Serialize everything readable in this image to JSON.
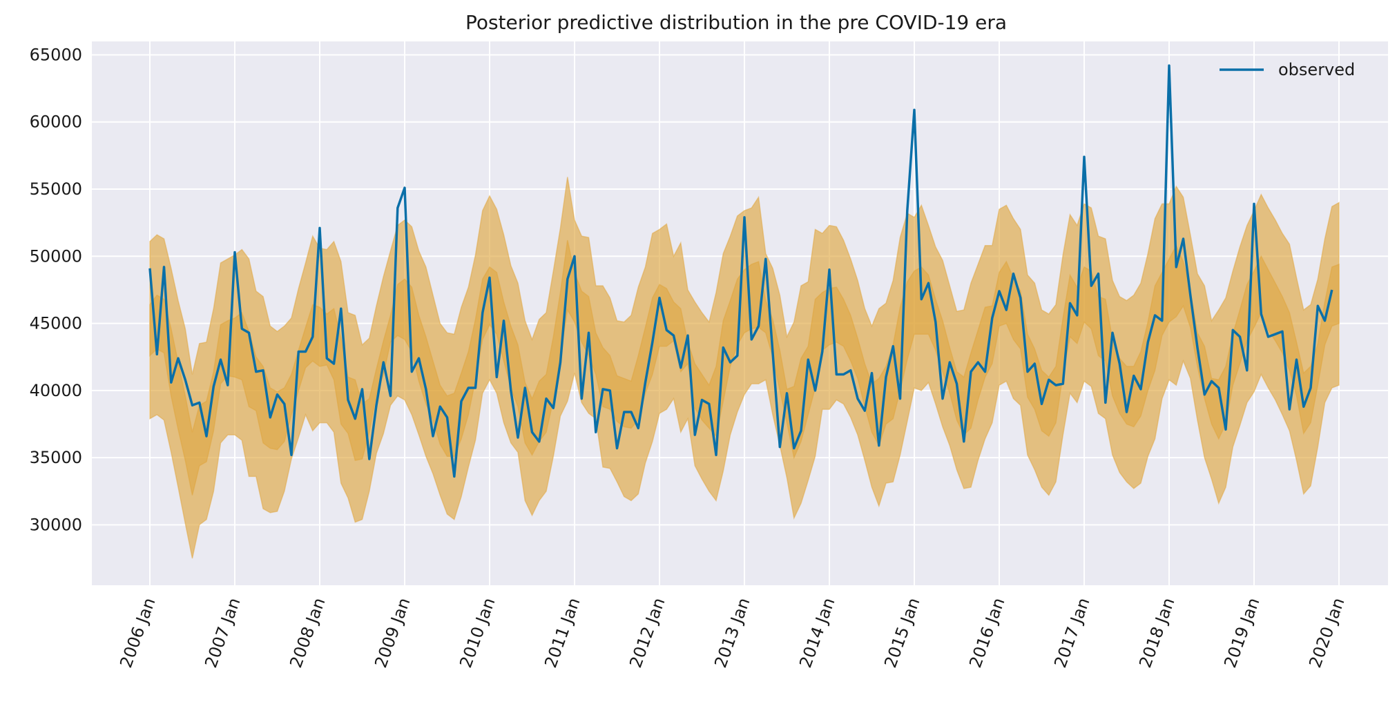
{
  "chart_data": {
    "type": "line",
    "title": "Posterior predictive distribution in the pre COVID-19 era",
    "xlabel": "",
    "ylabel": "",
    "ylim": [
      25500,
      66000
    ],
    "y_ticks": [
      30000,
      35000,
      40000,
      45000,
      50000,
      55000,
      60000,
      65000
    ],
    "x_ticks": [
      "2006 Jan",
      "2007 Jan",
      "2008 Jan",
      "2009 Jan",
      "2010 Jan",
      "2011 Jan",
      "2012 Jan",
      "2013 Jan",
      "2014 Jan",
      "2015 Jan",
      "2016 Jan",
      "2017 Jan",
      "2018 Jan",
      "2019 Jan",
      "2020 Jan"
    ],
    "grid": true,
    "legend": {
      "position": "top-right",
      "entries": [
        "observed"
      ]
    },
    "colors": {
      "observed": "#0a6fa8",
      "band": "#dfa43a",
      "background": "#eaeaf2",
      "grid": "#ffffff"
    },
    "series": [
      {
        "name": "observed",
        "x_start": "2006 Jan",
        "frequency": "monthly",
        "values": [
          49100,
          42700,
          49200,
          40600,
          42400,
          40800,
          38900,
          39100,
          36600,
          40300,
          42300,
          40400,
          50300,
          44600,
          44300,
          41400,
          41500,
          38000,
          39700,
          39000,
          35200,
          42900,
          42900,
          44000,
          52100,
          42400,
          42000,
          46100,
          39300,
          37900,
          40100,
          34900,
          38900,
          42100,
          39600,
          53600,
          55100,
          41400,
          42400,
          40100,
          36600,
          38800,
          38000,
          33600,
          39200,
          40200,
          40200,
          45800,
          48400,
          41000,
          45200,
          40000,
          36500,
          40200,
          36900,
          36200,
          39400,
          38700,
          42100,
          48300,
          50000,
          39400,
          44300,
          36900,
          40100,
          40000,
          35700,
          38400,
          38400,
          37200,
          40600,
          43600,
          46900,
          44500,
          44100,
          41700,
          44100,
          36700,
          39300,
          39000,
          35200,
          43200,
          42100,
          42600,
          52900,
          43800,
          44800,
          49800,
          42800,
          35800,
          39800,
          35700,
          37000,
          42300,
          40000,
          42900,
          49000,
          41200,
          41200,
          41500,
          39400,
          38500,
          41300,
          35900,
          41000,
          43300,
          39400,
          53400,
          60900,
          46800,
          48000,
          45100,
          39400,
          42100,
          40500,
          36200,
          41400,
          42100,
          41400,
          45400,
          47400,
          46000,
          48700,
          46900,
          41400,
          42000,
          39000,
          40800,
          40400,
          40500,
          46500,
          45600,
          57400,
          47800,
          48700,
          39100,
          44300,
          42000,
          38400,
          41100,
          40100,
          43600,
          45600,
          45200,
          64200,
          49200,
          51300,
          47100,
          43200,
          39700,
          40700,
          40200,
          37100,
          44500,
          44000,
          41500,
          53900,
          45700,
          44000,
          44200,
          44400,
          38600,
          42300,
          38800,
          40200,
          46300,
          45200,
          47500
        ]
      }
    ],
    "bands": [
      {
        "name": "outer interval",
        "lower": [
          37900,
          38200,
          37800,
          35400,
          32800,
          30100,
          27500,
          30000,
          30400,
          32500,
          36100,
          36700,
          36700,
          36300,
          33600,
          33600,
          31200,
          30900,
          31000,
          32500,
          34900,
          36500,
          38200,
          37000,
          37600,
          37600,
          36900,
          33100,
          32000,
          30200,
          30400,
          32500,
          35300,
          36800,
          38900,
          39600,
          39300,
          38200,
          36700,
          35100,
          33800,
          32200,
          30800,
          30400,
          32100,
          34300,
          36300,
          39800,
          40800,
          39800,
          37600,
          36100,
          35400,
          31800,
          30700,
          31800,
          32500,
          35100,
          38100,
          39200,
          41300,
          39100,
          38300,
          37900,
          34300,
          34200,
          33200,
          32100,
          31800,
          32300,
          34600,
          36200,
          38300,
          38600,
          39400,
          36900,
          37900,
          34400,
          33400,
          32500,
          31800,
          34000,
          36700,
          38400,
          39700,
          40500,
          40500,
          40800,
          38200,
          35900,
          33500,
          30500,
          31600,
          33300,
          35100,
          38600,
          38600,
          39300,
          39000,
          38000,
          36700,
          34800,
          32800,
          31400,
          33100,
          33200,
          35200,
          37700,
          40200,
          40000,
          40600,
          39000,
          37300,
          35900,
          34100,
          32700,
          32800,
          34800,
          36400,
          37600,
          40400,
          40700,
          39400,
          38900,
          35200,
          34100,
          32800,
          32200,
          33200,
          36700,
          39800,
          39100,
          40700,
          40300,
          38300,
          37900,
          35200,
          33900,
          33200,
          32700,
          33100,
          35100,
          36400,
          39400,
          40800,
          40400,
          42200,
          40900,
          37800,
          35000,
          33400,
          31600,
          32800,
          35800,
          37400,
          39100,
          39900,
          41200,
          40200,
          39300,
          38200,
          37000,
          34800,
          32300,
          32900,
          35800,
          39100,
          40200,
          40400
        ],
        "upper": [
          51100,
          51600,
          51300,
          49100,
          46700,
          44600,
          41200,
          43500,
          43600,
          46100,
          49500,
          49800,
          50100,
          50500,
          49800,
          47400,
          47000,
          44800,
          44400,
          44800,
          45400,
          47600,
          49500,
          51500,
          50600,
          50500,
          51100,
          49600,
          45800,
          45600,
          43400,
          43900,
          46300,
          48500,
          50400,
          52300,
          52700,
          52200,
          50400,
          49200,
          47100,
          45000,
          44300,
          44200,
          46200,
          47700,
          50100,
          53400,
          54500,
          53500,
          51600,
          49300,
          48000,
          45200,
          43800,
          45300,
          45800,
          48900,
          52100,
          55900,
          52700,
          51500,
          51400,
          47800,
          47800,
          46900,
          45200,
          45100,
          45600,
          47700,
          49200,
          51700,
          52000,
          52400,
          50000,
          51000,
          47500,
          46600,
          45800,
          45100,
          47300,
          50200,
          51500,
          53000,
          53400,
          53600,
          54400,
          50200,
          49100,
          47100,
          44000,
          45100,
          47800,
          48100,
          52000,
          51700,
          52300,
          52200,
          51200,
          49800,
          48200,
          46100,
          44800,
          46100,
          46500,
          48200,
          51400,
          53200,
          52900,
          53800,
          52300,
          50700,
          49700,
          47800,
          45900,
          46000,
          48000,
          49400,
          50800,
          50800,
          53500,
          53800,
          52800,
          52000,
          48600,
          48000,
          46000,
          45700,
          46400,
          50100,
          53100,
          52300,
          53900,
          53600,
          51500,
          51300,
          48200,
          47000,
          46700,
          47100,
          48000,
          50200,
          52800,
          53900,
          53900,
          55200,
          54400,
          51600,
          48700,
          47800,
          45200,
          46000,
          46900,
          48900,
          50700,
          52300,
          53400,
          54600,
          53600,
          52700,
          51700,
          50900,
          48400,
          46000,
          46400,
          48300,
          51300,
          53700,
          54000
        ]
      },
      {
        "name": "inner interval",
        "lower": [
          42600,
          43100,
          42800,
          39600,
          37100,
          34800,
          32200,
          34400,
          34700,
          37000,
          40500,
          41100,
          41000,
          40800,
          38800,
          38500,
          36100,
          35700,
          35600,
          36200,
          38200,
          40000,
          41700,
          42200,
          41800,
          41900,
          40800,
          37500,
          36800,
          34800,
          34900,
          36900,
          39700,
          41200,
          43600,
          44100,
          43800,
          42900,
          40700,
          39000,
          37800,
          36000,
          35100,
          35100,
          36400,
          38200,
          40800,
          43800,
          44900,
          44200,
          42200,
          40200,
          38800,
          36100,
          35200,
          36200,
          36900,
          39300,
          42600,
          46000,
          45100,
          43600,
          42600,
          41200,
          38800,
          38600,
          37700,
          37300,
          37200,
          37800,
          39800,
          41200,
          43300,
          43300,
          43700,
          41400,
          42000,
          38700,
          37800,
          37200,
          36600,
          39200,
          41800,
          43400,
          44300,
          44600,
          44700,
          44300,
          42500,
          40000,
          37600,
          35000,
          36200,
          38200,
          40200,
          43000,
          43400,
          43600,
          43300,
          42200,
          40900,
          38800,
          36900,
          35900,
          37500,
          37900,
          40000,
          42300,
          44200,
          44200,
          44200,
          43000,
          41400,
          39800,
          37800,
          36700,
          37200,
          39300,
          41000,
          42000,
          44800,
          45000,
          43800,
          43100,
          39500,
          38600,
          37000,
          36600,
          37600,
          41200,
          44000,
          43500,
          45100,
          44600,
          42600,
          42200,
          39600,
          38300,
          37500,
          37300,
          38100,
          40000,
          41500,
          44100,
          45100,
          45500,
          46300,
          44700,
          41800,
          39400,
          37500,
          36400,
          37500,
          40400,
          42000,
          43700,
          44700,
          45800,
          44500,
          43700,
          42800,
          41500,
          39600,
          36800,
          37600,
          40400,
          43400,
          44800,
          45000
        ],
        "upper": [
          46400,
          47100,
          46800,
          44600,
          42100,
          39600,
          36900,
          38900,
          39200,
          41400,
          44900,
          45200,
          45400,
          45800,
          44400,
          42500,
          41800,
          40200,
          39900,
          40200,
          41200,
          43000,
          44700,
          46400,
          46200,
          45700,
          46100,
          43900,
          41000,
          40800,
          39000,
          39400,
          41600,
          43700,
          45600,
          47900,
          48300,
          47700,
          45600,
          44000,
          42200,
          40400,
          39600,
          39800,
          41300,
          42900,
          45300,
          48300,
          49200,
          48800,
          46600,
          44800,
          43400,
          40600,
          39400,
          40700,
          41200,
          44000,
          47300,
          51200,
          48800,
          47400,
          47000,
          44300,
          43200,
          42600,
          41100,
          40900,
          40700,
          42600,
          44700,
          46900,
          47900,
          47600,
          46600,
          46100,
          43600,
          42000,
          41200,
          40400,
          41800,
          45200,
          46700,
          48300,
          49000,
          49400,
          49600,
          46700,
          45300,
          43000,
          40100,
          40300,
          42400,
          43300,
          46800,
          47300,
          47600,
          47700,
          46800,
          45600,
          43900,
          42000,
          40500,
          40900,
          41800,
          43400,
          46200,
          48100,
          48900,
          49200,
          48600,
          46800,
          45200,
          43200,
          41400,
          41000,
          42800,
          44500,
          46200,
          46300,
          48800,
          49600,
          48400,
          47400,
          44200,
          43100,
          41500,
          41000,
          41800,
          45400,
          48600,
          47700,
          49200,
          48900,
          47000,
          46800,
          43800,
          42400,
          41800,
          41800,
          42900,
          45100,
          47800,
          48800,
          49800,
          50800,
          49600,
          47400,
          44300,
          43300,
          40900,
          40800,
          41800,
          44200,
          46000,
          47900,
          48900,
          50000,
          49000,
          48000,
          47000,
          45800,
          43600,
          41300,
          41800,
          43500,
          46600,
          49200,
          49400
        ]
      }
    ]
  }
}
